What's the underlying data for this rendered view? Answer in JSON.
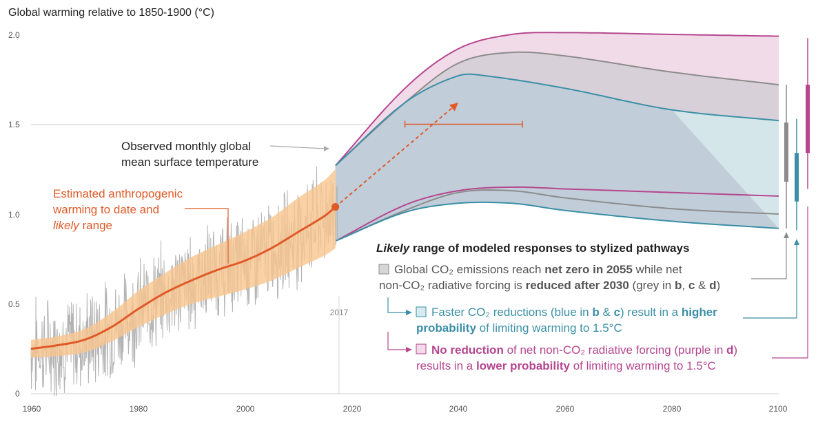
{
  "chart_data": {
    "type": "line",
    "title": "Global warming relative to 1850-1900 (°C)",
    "xlim": [
      1960,
      2100
    ],
    "ylim": [
      0,
      2.0
    ],
    "x_ticks": [
      "1960",
      "1980",
      "2000",
      "2020",
      "2040",
      "2060",
      "2080",
      "2100"
    ],
    "y_ticks": [
      "0",
      "0.5",
      "1.0",
      "1.5",
      "2.0"
    ],
    "grid": "horizontal line at 1.5",
    "marker_year_label": "2017",
    "colors": {
      "observed": "#b3b3b3",
      "anthropogenic": "#e05a28",
      "anthropogenic_band": "#f7c58f",
      "grey": "#8c8c8c",
      "blue": "#3a8fa6",
      "purple": "#b5468f"
    },
    "series": [
      {
        "name": "Estimated anthropogenic warming to date",
        "x": [
          1960,
          1965,
          1970,
          1975,
          1980,
          1985,
          1990,
          1995,
          2000,
          2005,
          2010,
          2015,
          2017
        ],
        "y": [
          0.25,
          0.27,
          0.3,
          0.37,
          0.47,
          0.56,
          0.63,
          0.69,
          0.74,
          0.81,
          0.9,
          0.99,
          1.04
        ],
        "likely_low": [
          0.2,
          0.21,
          0.23,
          0.29,
          0.37,
          0.44,
          0.5,
          0.54,
          0.58,
          0.63,
          0.7,
          0.77,
          0.81
        ],
        "likely_high": [
          0.3,
          0.32,
          0.36,
          0.45,
          0.57,
          0.67,
          0.76,
          0.83,
          0.9,
          0.98,
          1.09,
          1.19,
          1.25
        ]
      },
      {
        "name": "grey pathway upper bound",
        "x": [
          2017,
          2030,
          2040,
          2050,
          2060,
          2080,
          2100
        ],
        "y": [
          1.27,
          1.62,
          1.84,
          1.9,
          1.88,
          1.79,
          1.72
        ]
      },
      {
        "name": "grey pathway lower bound",
        "x": [
          2017,
          2030,
          2040,
          2050,
          2060,
          2080,
          2100
        ],
        "y": [
          0.85,
          1.02,
          1.12,
          1.13,
          1.09,
          1.03,
          1.0
        ]
      },
      {
        "name": "blue pathway upper bound",
        "x": [
          2017,
          2030,
          2040,
          2045,
          2060,
          2080,
          2100
        ],
        "y": [
          1.27,
          1.62,
          1.77,
          1.77,
          1.7,
          1.58,
          1.52
        ]
      },
      {
        "name": "blue pathway lower bound",
        "x": [
          2017,
          2030,
          2040,
          2050,
          2060,
          2080,
          2100
        ],
        "y": [
          0.85,
          1.01,
          1.06,
          1.06,
          1.02,
          0.96,
          0.92
        ]
      },
      {
        "name": "purple pathway upper bound",
        "x": [
          2017,
          2030,
          2040,
          2050,
          2060,
          2080,
          2100
        ],
        "y": [
          1.27,
          1.7,
          1.92,
          2.0,
          2.01,
          2.0,
          1.99
        ]
      },
      {
        "name": "purple pathway lower bound",
        "x": [
          2017,
          2030,
          2040,
          2050,
          2060,
          2080,
          2100
        ],
        "y": [
          0.85,
          1.05,
          1.13,
          1.15,
          1.14,
          1.12,
          1.1
        ]
      }
    ],
    "projection_arrow": {
      "from": [
        2017,
        1.04
      ],
      "to": [
        2040,
        1.62
      ]
    },
    "uncertainty_range": {
      "x": [
        2030,
        2052
      ],
      "y": 1.5
    },
    "bars_2100": [
      {
        "color": "grey",
        "whisker": [
          0.92,
          1.72
        ],
        "box": [
          1.18,
          1.51
        ]
      },
      {
        "color": "blue",
        "whisker": [
          0.91,
          1.53
        ],
        "box": [
          1.07,
          1.34
        ]
      },
      {
        "color": "purple",
        "whisker": [
          1.14,
          1.98
        ],
        "box": [
          1.34,
          1.72
        ]
      }
    ]
  },
  "annotations": {
    "observed_l1": "Observed monthly global",
    "observed_l2": "mean surface temperature",
    "anthro_l1": "Estimated anthropogenic",
    "anthro_l2": "warming to date and",
    "anthro_l3_italic": "likely",
    "anthro_l3_rest": " range",
    "legend_title_italic": "Likely",
    "legend_title_rest": " range of modeled responses to stylized pathways",
    "grey_l1_a": "Global CO₂ emissions reach ",
    "grey_l1_b": "net zero in 2055",
    "grey_l1_c": " while net",
    "grey_l2_a": "non-CO₂ radiative forcing is ",
    "grey_l2_b": "reduced after 2030",
    "grey_l2_c": " (grey in ",
    "grey_l2_d": "b",
    "grey_l2_e": ", ",
    "grey_l2_f": "c",
    "grey_l2_g": " & ",
    "grey_l2_h": "d",
    "grey_l2_i": ")",
    "blue_l1_a": "Faster CO₂ reductions (blue in ",
    "blue_l1_b": "b",
    "blue_l1_c": " & ",
    "blue_l1_d": "c",
    "blue_l1_e": ") result in a ",
    "blue_l1_f": "higher",
    "blue_l2_a": "probability",
    "blue_l2_b": " of limiting warming to 1.5°C",
    "purple_l1_a": "No reduction",
    "purple_l1_b": " of net non-CO₂ radiative forcing (purple in ",
    "purple_l1_c": "d",
    "purple_l1_d": ")",
    "purple_l2_a": "results in a ",
    "purple_l2_b": "lower probability",
    "purple_l2_c": " of limiting warming to 1.5°C"
  }
}
